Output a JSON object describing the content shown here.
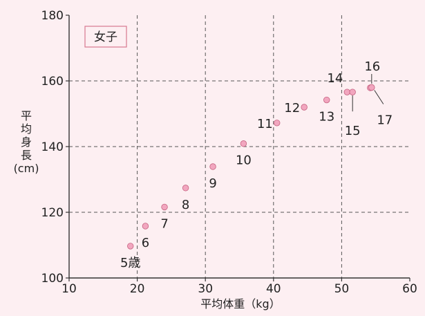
{
  "chart_data": {
    "type": "scatter",
    "badge": "女子",
    "xlabel": "平均体重（kg）",
    "ylabel_chars": [
      "平",
      "均",
      "身",
      "長",
      "(cm)"
    ],
    "xlim": [
      10,
      60
    ],
    "ylim": [
      100,
      180
    ],
    "xticks": [
      "10",
      "20",
      "30",
      "40",
      "50",
      "60"
    ],
    "yticks": [
      "100",
      "120",
      "140",
      "160",
      "180"
    ],
    "grid": "dashed",
    "points": [
      {
        "label": "5歳",
        "x": 19.0,
        "y": 109.7
      },
      {
        "label": "6",
        "x": 21.2,
        "y": 115.8
      },
      {
        "label": "7",
        "x": 24.0,
        "y": 121.6
      },
      {
        "label": "8",
        "x": 27.1,
        "y": 127.4
      },
      {
        "label": "9",
        "x": 31.1,
        "y": 133.9
      },
      {
        "label": "10",
        "x": 35.6,
        "y": 140.9
      },
      {
        "label": "11",
        "x": 40.5,
        "y": 147.2
      },
      {
        "label": "12",
        "x": 44.5,
        "y": 152.0
      },
      {
        "label": "13",
        "x": 47.8,
        "y": 154.2
      },
      {
        "label": "14",
        "x": 50.8,
        "y": 156.6
      },
      {
        "label": "15",
        "x": 51.6,
        "y": 156.6
      },
      {
        "label": "16",
        "x": 54.2,
        "y": 157.9
      },
      {
        "label": "17",
        "x": 54.4,
        "y": 158.0
      }
    ]
  }
}
